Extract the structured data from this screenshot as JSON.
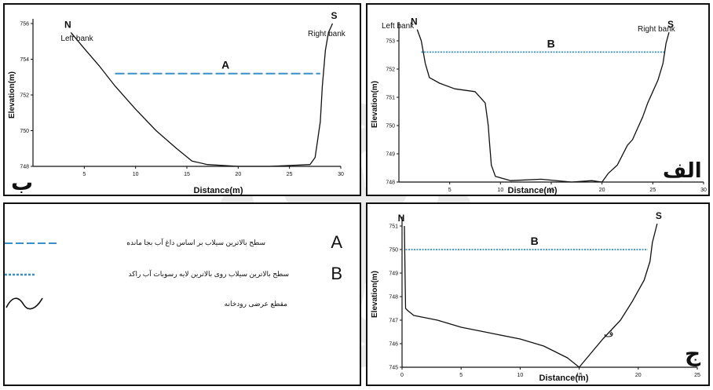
{
  "chart_data": [
    {
      "id": "b",
      "type": "line",
      "panel_letter": "ب",
      "xlabel": "Distance(m)",
      "ylabel": "Elevation(m)",
      "xlim": [
        0,
        30
      ],
      "ylim": [
        748,
        756
      ],
      "x_ticks": [
        5,
        10,
        15,
        20,
        25,
        30
      ],
      "y_ticks": [
        748,
        750,
        752,
        754,
        756
      ],
      "bank_left_label": "Left bank",
      "bank_right_label": "Right bank",
      "bank_left_letter": "N",
      "bank_right_letter": "S",
      "water_line_label": "A",
      "water_line": {
        "y": 753.2,
        "x_start": 8,
        "x_end": 28,
        "style": "dashed"
      },
      "profile": {
        "x": [
          3.7,
          5,
          6.5,
          8,
          10,
          12,
          14,
          15.5,
          17,
          20,
          23,
          25,
          27,
          27.5,
          28,
          28.2,
          28.5,
          28.8,
          29.2
        ],
        "y": [
          755.5,
          754.6,
          753.6,
          752.5,
          751.2,
          750.0,
          749.0,
          748.3,
          748.1,
          748.0,
          748.0,
          748.05,
          748.1,
          748.5,
          750.5,
          752.5,
          754.5,
          755.5,
          756.0
        ]
      }
    },
    {
      "id": "alf",
      "type": "line",
      "panel_letter": "الف",
      "xlabel": "Distance(m)",
      "ylabel": "Elevation(m)",
      "xlim": [
        0,
        30
      ],
      "ylim": [
        748,
        753.5
      ],
      "x_ticks": [
        5,
        10,
        15,
        20,
        25,
        30
      ],
      "y_ticks": [
        748,
        749,
        750,
        751,
        752,
        753
      ],
      "bank_left_label": "Left bank",
      "bank_right_label": "Right bank",
      "bank_left_letter": "N",
      "bank_right_letter": "S",
      "water_line_label": "B",
      "water_line": {
        "y": 752.6,
        "x_start": 2.2,
        "x_end": 26.2,
        "style": "dotted"
      },
      "profile": {
        "x": [
          1.8,
          2.2,
          2.6,
          3.0,
          4.0,
          5.5,
          7.5,
          8.5,
          8.8,
          8.9,
          9.1,
          9.5,
          11,
          14,
          17,
          19,
          20,
          20.6,
          21.5,
          22.5,
          23.0,
          23.5,
          24.0,
          24.5,
          25.0,
          25.5,
          26.0,
          26.3,
          26.6
        ],
        "y": [
          753.4,
          753.0,
          752.2,
          751.7,
          751.5,
          751.3,
          751.2,
          750.8,
          750.0,
          749.5,
          748.6,
          748.2,
          748.05,
          748.1,
          748.0,
          748.05,
          748.0,
          748.3,
          748.6,
          749.3,
          749.5,
          749.9,
          750.3,
          750.8,
          751.2,
          751.6,
          752.2,
          752.9,
          753.3
        ]
      }
    },
    {
      "id": "j",
      "type": "line",
      "panel_letter": "ج",
      "xlabel": "Distance(m)",
      "ylabel": "Elevation(m)",
      "xlim": [
        0,
        25
      ],
      "ylim": [
        745,
        751.2
      ],
      "x_ticks": [
        0,
        5,
        10,
        15,
        20,
        25
      ],
      "y_ticks": [
        745,
        746,
        747,
        748,
        749,
        750,
        751
      ],
      "bank_left_letter": "N",
      "bank_right_letter": "S",
      "water_line_label": "B",
      "water_line": {
        "y": 750.0,
        "x_start": 0.3,
        "x_end": 20.8,
        "style": "dotted"
      },
      "annotation": "ف",
      "profile": {
        "x": [
          0.2,
          0.25,
          0.3,
          0.5,
          1,
          3,
          5,
          8,
          10,
          12,
          14,
          15,
          15.5,
          17,
          18.5,
          19.5,
          20.5,
          21,
          21.2,
          21.6
        ],
        "y": [
          751.0,
          749.0,
          747.5,
          747.4,
          747.2,
          747.0,
          746.7,
          746.4,
          746.2,
          745.9,
          745.4,
          745.0,
          745.3,
          746.2,
          747.0,
          747.8,
          748.7,
          749.5,
          750.3,
          751.1
        ]
      }
    }
  ],
  "legend": {
    "items": [
      {
        "letter": "A",
        "text": "سطح بالاترین سیلاب بر اساس داغ آب بجا مانده",
        "line_style": "dashed",
        "color": "#3a8fc8"
      },
      {
        "letter": "B",
        "text": "سطح بالاترین سیلاب روی بالاترین لایه رسوبات آب راکد",
        "line_style": "dotted",
        "color": "#3a8fc8"
      },
      {
        "letter": "",
        "text": "مقطع عرضی رودخانه",
        "line_style": "curve",
        "color": "#111111"
      }
    ]
  },
  "colors": {
    "water_line": "#3a8fc8",
    "profile": "#111111"
  }
}
